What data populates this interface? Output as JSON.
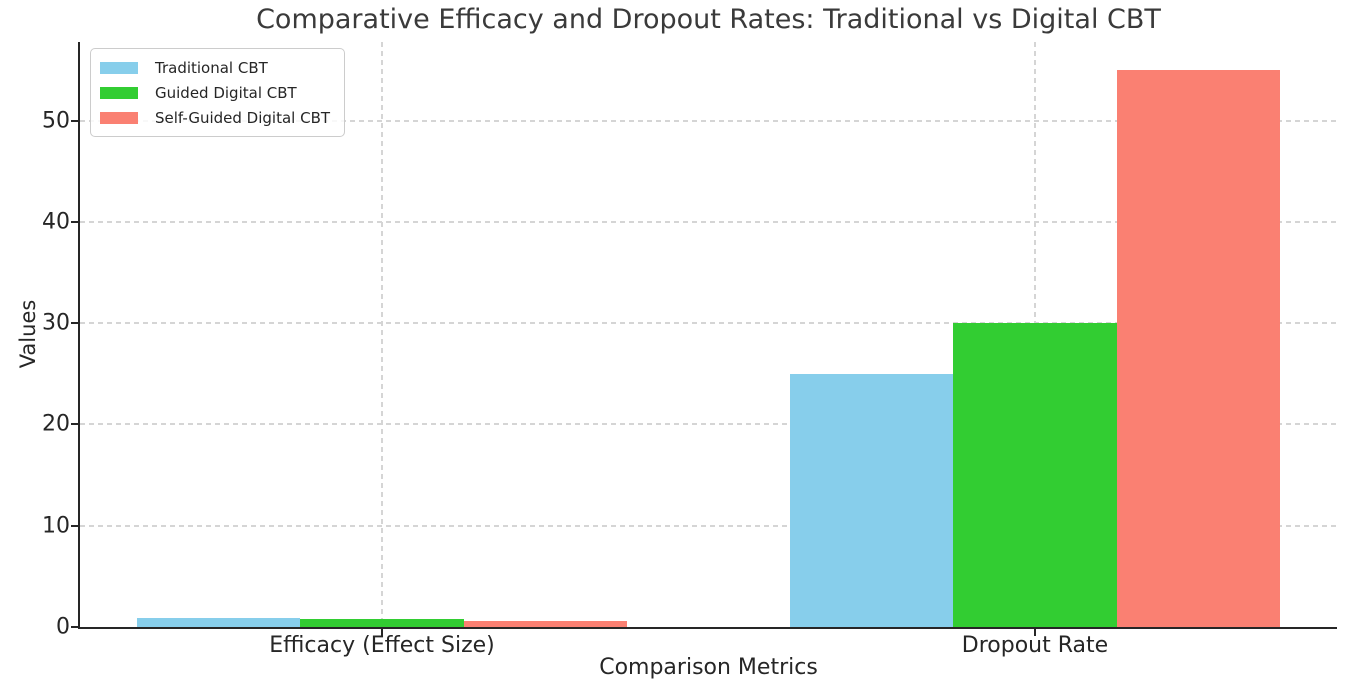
{
  "chart_data": {
    "type": "bar",
    "title": "Comparative Efficacy and Dropout Rates: Traditional vs Digital CBT",
    "xlabel": "Comparison Metrics",
    "ylabel": "Values",
    "categories": [
      "Efficacy (Effect Size)",
      "Dropout Rate"
    ],
    "series": [
      {
        "name": "Traditional CBT",
        "color": "#87CEEB",
        "values": [
          0.9,
          25
        ]
      },
      {
        "name": "Guided Digital CBT",
        "color": "#32CD32",
        "values": [
          0.8,
          30
        ]
      },
      {
        "name": "Self-Guided Digital CBT",
        "color": "#FA8072",
        "values": [
          0.6,
          55
        ]
      }
    ],
    "yticks": [
      0,
      10,
      20,
      30,
      40,
      50
    ],
    "ylim": [
      0,
      57.75
    ],
    "xlim": [
      -0.4625,
      1.4625
    ],
    "bar_width": 0.25,
    "grid": {
      "style": "dashed",
      "color": "#d5d5d5"
    },
    "legend_position": "upper-left",
    "spine_color": "#262626",
    "background": "#ffffff"
  }
}
